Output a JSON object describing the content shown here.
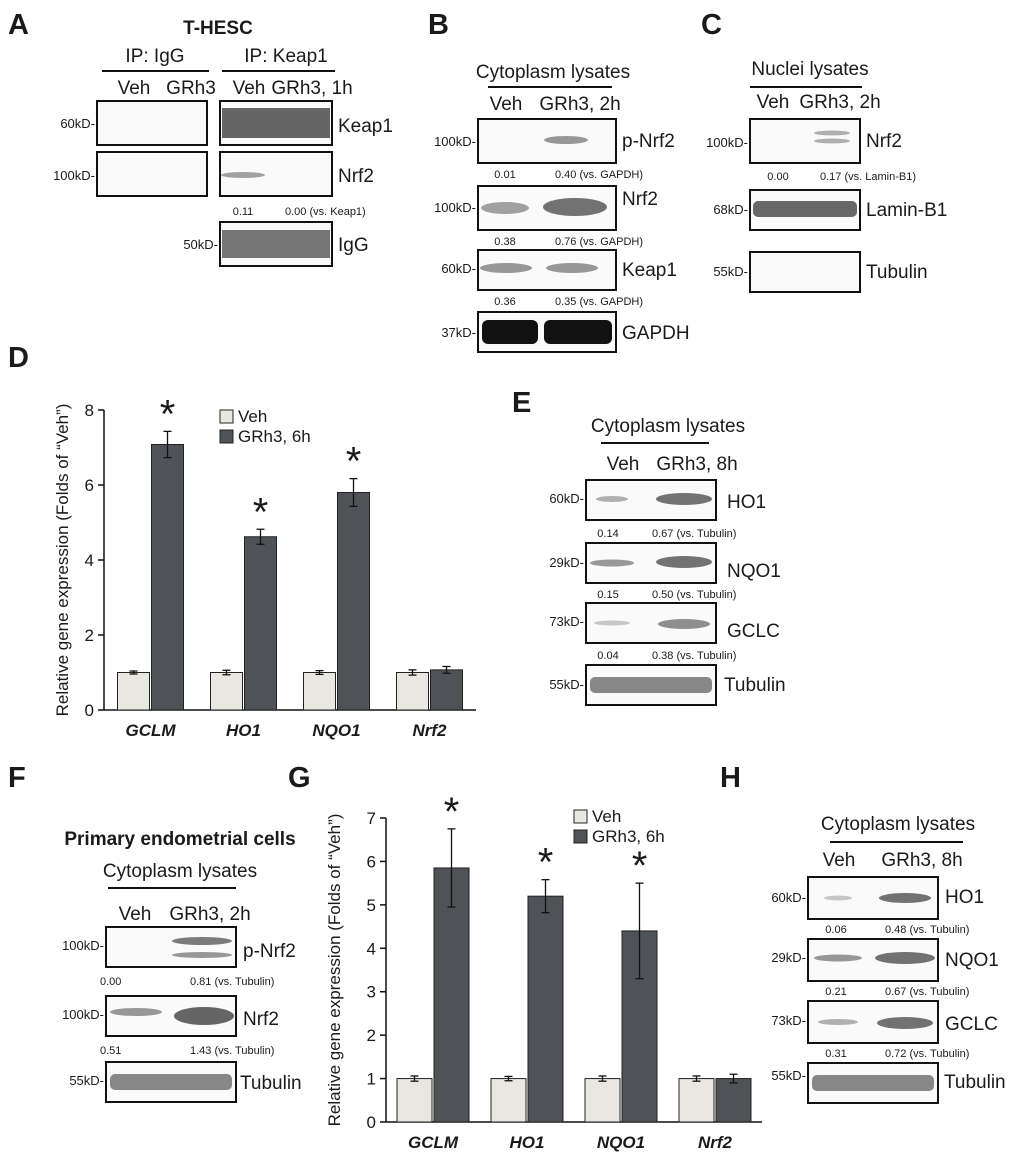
{
  "colors": {
    "veh": "#e8e8e0",
    "grh3": "#4f5357",
    "text": "#1a1a1a"
  },
  "panelA": {
    "letter": "A",
    "title": "T-HESC",
    "ip_igg": "IP: IgG",
    "ip_keap1": "IP: Keap1",
    "veh": "Veh",
    "grh3": "GRh3",
    "grh3_time": "GRh3, 1h",
    "m60": "60kD-",
    "m100": "100kD-",
    "m50": "50kD-",
    "keap1": "Keap1",
    "nrf2": "Nrf2",
    "igg": "IgG",
    "q1": "0.11",
    "q2": "0.00 (vs. Keap1)"
  },
  "panelB": {
    "letter": "B",
    "header": "Cytoplasm lysates",
    "veh": "Veh",
    "grh3": "GRh3, 2h",
    "m100a": "100kD-",
    "m100b": "100kD-",
    "m60": "60kD-",
    "m37": "37kD-",
    "pnrf2": "p-Nrf2",
    "nrf2": "Nrf2",
    "keap1": "Keap1",
    "gapdh": "GAPDH",
    "q1a": "0.01",
    "q1b": "0.40 (vs. GAPDH)",
    "q2a": "0.38",
    "q2b": "0.76 (vs. GAPDH)",
    "q3a": "0.36",
    "q3b": "0.35 (vs. GAPDH)"
  },
  "panelC": {
    "letter": "C",
    "header": "Nuclei lysates",
    "veh": "Veh",
    "grh3": "GRh3, 2h",
    "m100": "100kD-",
    "m68": "68kD-",
    "m55": "55kD-",
    "nrf2": "Nrf2",
    "lamin": "Lamin-B1",
    "tubulin": "Tubulin",
    "q1a": "0.00",
    "q1b": "0.17 (vs. Lamin-B1)"
  },
  "panelE": {
    "letter": "E",
    "header": "Cytoplasm lysates",
    "veh": "Veh",
    "grh3": "GRh3, 8h",
    "m60": "60kD-",
    "m29": "29kD-",
    "m73": "73kD-",
    "m55": "55kD-",
    "ho1": "HO1",
    "nqo1": "NQO1",
    "gclc": "GCLC",
    "tubulin": "Tubulin",
    "q1a": "0.14",
    "q1b": "0.67 (vs. Tubulin)",
    "q2a": "0.15",
    "q2b": "0.50 (vs. Tubulin)",
    "q3a": "0.04",
    "q3b": "0.38 (vs. Tubulin)"
  },
  "panelF": {
    "letter": "F",
    "title": "Primary endometrial cells",
    "header": "Cytoplasm lysates",
    "veh": "Veh",
    "grh3": "GRh3, 2h",
    "m100a": "100kD-",
    "m100b": "100kD-",
    "m55": "55kD-",
    "pnrf2": "p-Nrf2",
    "nrf2": "Nrf2",
    "tubulin": "Tubulin",
    "q1a": "0.00",
    "q1b": "0.81 (vs. Tubulin)",
    "q2a": "0.51",
    "q2b": "1.43 (vs. Tubulin)"
  },
  "panelH": {
    "letter": "H",
    "header": "Cytoplasm lysates",
    "veh": "Veh",
    "grh3": "GRh3, 8h",
    "m60": "60kD-",
    "m29": "29kD-",
    "m73": "73kD-",
    "m55": "55kD-",
    "ho1": "HO1",
    "nqo1": "NQO1",
    "gclc": "GCLC",
    "tubulin": "Tubulin",
    "q1a": "0.06",
    "q1b": "0.48 (vs. Tubulin)",
    "q2a": "0.21",
    "q2b": "0.67 (vs. Tubulin)",
    "q3a": "0.31",
    "q3b": "0.72 (vs. Tubulin)"
  },
  "panelD": {
    "letter": "D"
  },
  "panelG": {
    "letter": "G"
  },
  "chart_data": [
    {
      "id": "D",
      "type": "bar",
      "title": "",
      "ylabel": "Relative gene expression (Folds of “Veh”)",
      "xlabel": "",
      "categories": [
        "GCLM",
        "HO1",
        "NQO1",
        "Nrf2"
      ],
      "series": [
        {
          "name": "Veh",
          "values": [
            1.0,
            1.0,
            1.0,
            1.0
          ],
          "errors": [
            0.04,
            0.06,
            0.05,
            0.07
          ]
        },
        {
          "name": "GRh3, 6h",
          "values": [
            7.08,
            4.62,
            5.8,
            1.07
          ],
          "errors": [
            0.35,
            0.2,
            0.37,
            0.09
          ]
        }
      ],
      "significance": [
        "*",
        "*",
        "*",
        ""
      ],
      "ylim": [
        0,
        8
      ],
      "yticks": [
        "0",
        "2",
        "4",
        "6",
        "8"
      ],
      "legend": "top"
    },
    {
      "id": "G",
      "type": "bar",
      "title": "",
      "ylabel": "Relative gene expression (Folds of “Veh”)",
      "xlabel": "",
      "categories": [
        "GCLM",
        "HO1",
        "NQO1",
        "Nrf2"
      ],
      "series": [
        {
          "name": "Veh",
          "values": [
            1.0,
            1.0,
            1.0,
            1.0
          ],
          "errors": [
            0.06,
            0.05,
            0.06,
            0.06
          ]
        },
        {
          "name": "GRh3, 6h",
          "values": [
            5.85,
            5.2,
            4.4,
            1.0
          ],
          "errors": [
            0.9,
            0.38,
            1.1,
            0.1
          ]
        }
      ],
      "significance": [
        "*",
        "*",
        "*",
        ""
      ],
      "ylim": [
        0,
        7
      ],
      "yticks": [
        "0",
        "1",
        "2",
        "3",
        "4",
        "5",
        "6",
        "7"
      ],
      "legend": "top"
    }
  ]
}
